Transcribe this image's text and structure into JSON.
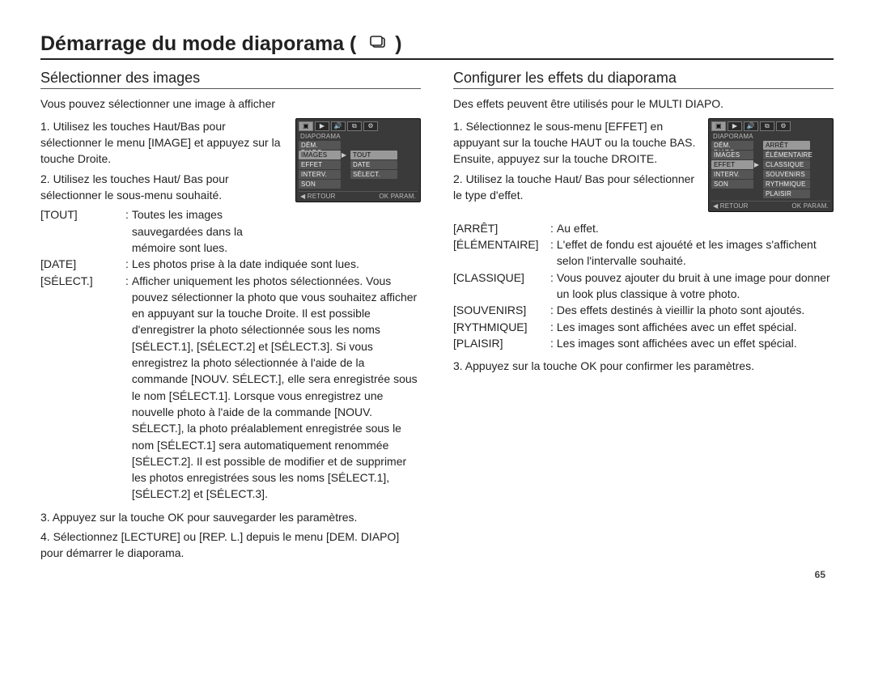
{
  "page": {
    "title": "Démarrage du mode diaporama (",
    "title_suffix": ")",
    "page_number": "65"
  },
  "colors": {
    "text": "#222222",
    "rule": "#222222",
    "lcd_bg": "#3a3a3a",
    "lcd_cell": "#555555",
    "lcd_highlight": "#999999",
    "lcd_text": "#d8d8d8"
  },
  "fonts": {
    "title_size_pt": 19,
    "heading_size_pt": 14,
    "body_size_pt": 10.5
  },
  "left": {
    "heading": "Sélectionner des images",
    "intro": "Vous pouvez sélectionner une image à afficher",
    "step1": "1. Utilisez les touches Haut/Bas pour sélectionner le menu [IMAGE] et appuyez sur la touche Droite.",
    "step2": "2. Utilisez les touches Haut/ Bas pour sélectionner le sous-menu souhaité.",
    "defs": [
      {
        "label": "[TOUT]",
        "text": "Toutes les images sauvegardées dans la mémoire sont lues."
      },
      {
        "label": "[DATE]",
        "text": "Les photos prise à la date indiquée sont lues."
      },
      {
        "label": "[SÉLECT.]",
        "text": "Afficher uniquement les photos sélectionnées. Vous pouvez sélectionner la photo que vous souhaitez afficher en appuyant sur la touche Droite. Il est possible d'enregistrer la photo sélectionnée sous les noms [SÉLECT.1], [SÉLECT.2] et [SÉLECT.3]. Si vous enregistrez la photo sélectionnée à l'aide de la commande [NOUV. SÉLECT.], elle sera enregistrée sous le nom [SÉLECT.1]. Lorsque vous enregistrez une nouvelle photo à l'aide de la commande [NOUV. SÉLECT.], la photo préalablement enregistrée sous le nom [SÉLECT.1] sera automatiquement renommée [SÉLECT.2]. Il est possible de modifier et de supprimer les photos enregistrées sous les noms [SÉLECT.1], [SÉLECT.2] et [SÉLECT.3]."
      }
    ],
    "step3": "3. Appuyez sur la touche OK pour sauvegarder les paramètres.",
    "step4": "4. Sélectionnez [LECTURE] ou [REP. L.] depuis le menu [DEM. DIAPO] pour démarrer le diaporama.",
    "lcd": {
      "section": "DIAPORAMA",
      "rows": [
        {
          "left": "DÉM. DIAPO",
          "hl_left": false,
          "arrow": "",
          "right": "",
          "hl_right": false
        },
        {
          "left": "IMAGES",
          "hl_left": true,
          "arrow": "▶",
          "right": "TOUT",
          "hl_right": true
        },
        {
          "left": "EFFET",
          "hl_left": false,
          "arrow": "",
          "right": "DATE",
          "hl_right": false
        },
        {
          "left": "INTERV.",
          "hl_left": false,
          "arrow": "",
          "right": "SÉLECT.",
          "hl_right": false
        },
        {
          "left": "SON",
          "hl_left": false,
          "arrow": "",
          "right": "",
          "hl_right": false
        }
      ],
      "bottom_left": "◀  RETOUR",
      "bottom_right": "OK  PARAM."
    }
  },
  "right": {
    "heading": "Configurer les effets du diaporama",
    "intro": "Des effets peuvent être utilisés pour le MULTI DIAPO.",
    "step1": "1. Sélectionnez le sous-menu [EFFET] en appuyant sur la touche HAUT ou la touche BAS. Ensuite, appuyez sur la touche DROITE.",
    "step2": "2. Utilisez la touche Haut/ Bas pour sélectionner le type d'effet.",
    "defs": [
      {
        "label": "[ARRÊT]",
        "text": "Au effet."
      },
      {
        "label": "[ÉLÉMENTAIRE]",
        "text": "L'effet de fondu est ajouété et les images s'affichent selon l'intervalle souhaité."
      },
      {
        "label": "[CLASSIQUE]",
        "text": "Vous pouvez ajouter du bruit à une image pour donner un look plus classique à votre photo."
      },
      {
        "label": "[SOUVENIRS]",
        "text": "Des effets destinés à vieillir la photo sont ajoutés."
      },
      {
        "label": "[RYTHMIQUE]",
        "text": "Les images sont affichées avec un effet spécial."
      },
      {
        "label": "[PLAISIR]",
        "text": "Les images sont affichées avec un effet spécial."
      }
    ],
    "step3": "3. Appuyez sur la touche OK pour confirmer les paramètres.",
    "lcd": {
      "section": "DIAPORAMA",
      "rows": [
        {
          "left": "DÉM. DIAPO",
          "hl_left": false,
          "arrow": "",
          "right": "ARRÊT",
          "hl_right": true
        },
        {
          "left": "IMAGES",
          "hl_left": false,
          "arrow": "",
          "right": "ÉLÉMENTAIRE",
          "hl_right": false
        },
        {
          "left": "EFFET",
          "hl_left": true,
          "arrow": "▶",
          "right": "CLASSIQUE",
          "hl_right": false
        },
        {
          "left": "INTERV.",
          "hl_left": false,
          "arrow": "",
          "right": "SOUVENIRS",
          "hl_right": false
        },
        {
          "left": "SON",
          "hl_left": false,
          "arrow": "",
          "right": "RYTHMIQUE",
          "hl_right": false
        },
        {
          "left": "",
          "hl_left": false,
          "arrow": "",
          "right": "PLAISIR",
          "hl_right": false
        }
      ],
      "bottom_left": "◀  RETOUR",
      "bottom_right": "OK  PARAM."
    }
  }
}
